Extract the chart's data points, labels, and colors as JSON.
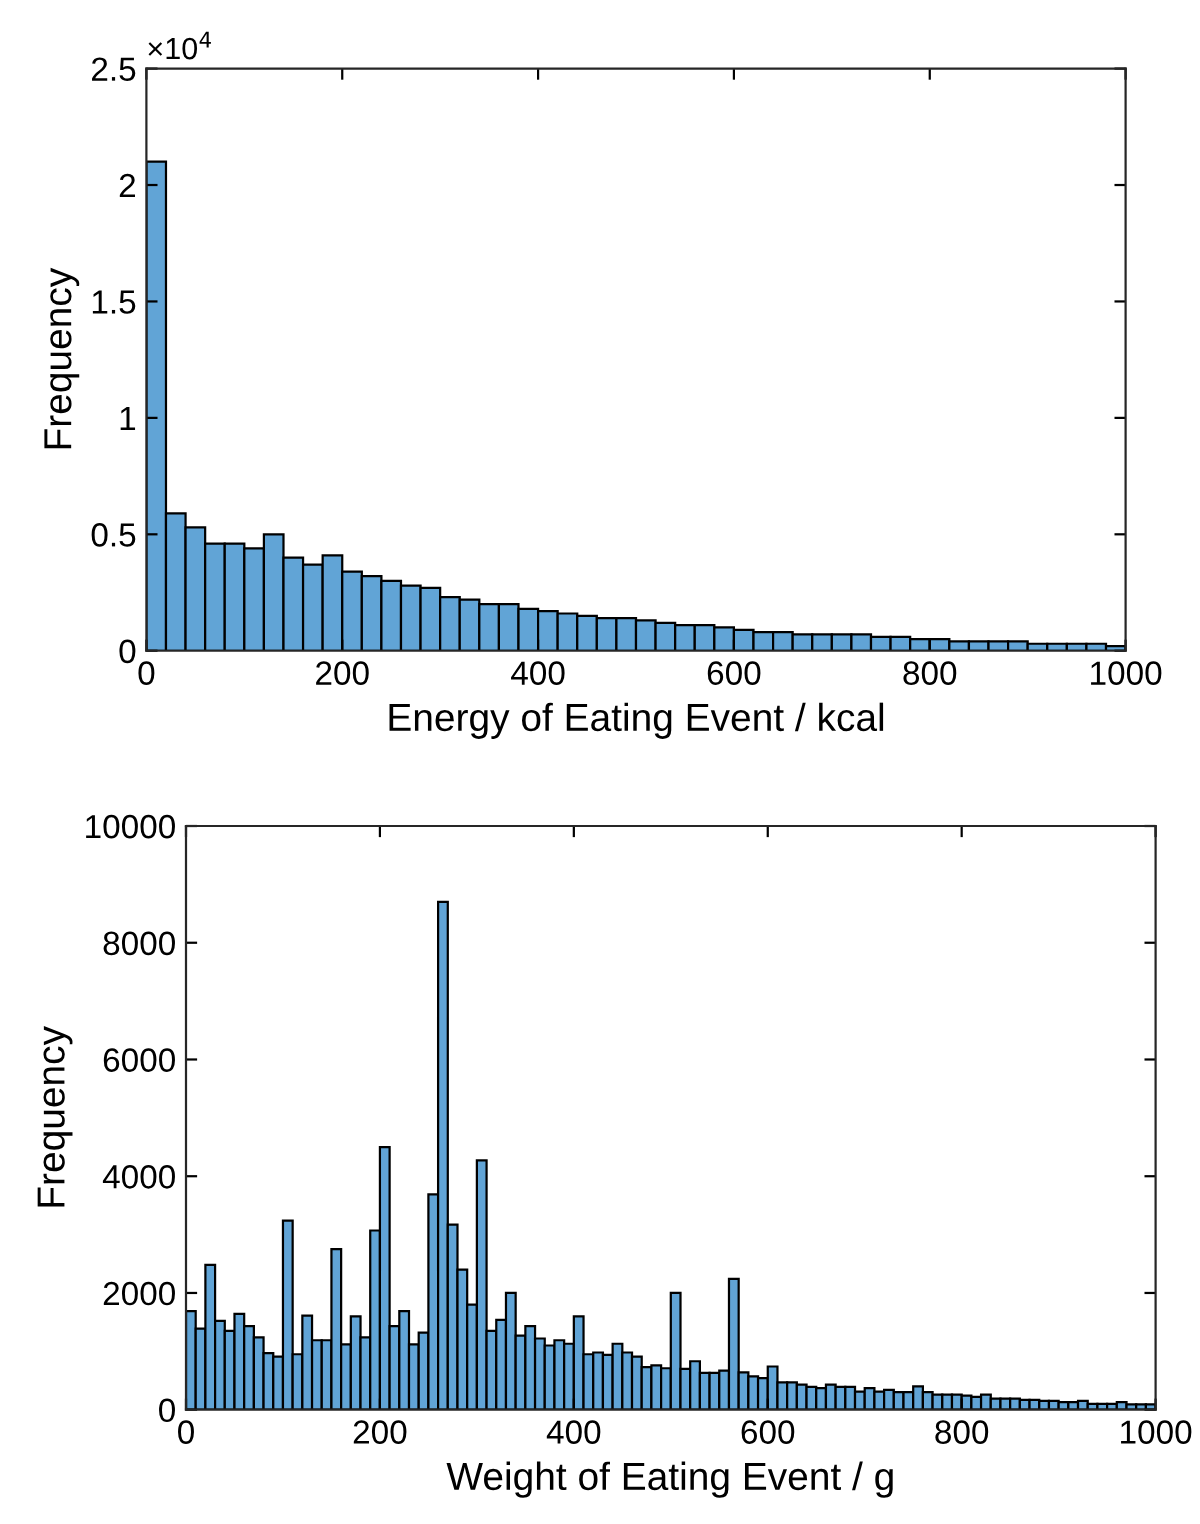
{
  "chart_data": [
    {
      "type": "histogram",
      "xlabel": "Energy of Eating Event / kcal",
      "ylabel": "Frequency",
      "color": "#61a4d6",
      "bins": [
        0,
        20,
        40,
        60,
        80,
        100,
        120,
        140,
        160,
        180,
        200,
        220,
        240,
        260,
        280,
        300,
        320,
        340,
        360,
        380,
        400,
        420,
        440,
        460,
        480,
        500,
        520,
        540,
        560,
        580,
        600,
        620,
        640,
        660,
        680,
        700,
        720,
        740,
        760,
        780,
        800,
        820,
        840,
        860,
        880,
        900,
        920,
        940,
        960,
        980,
        1000
      ],
      "values": [
        2.1,
        0.59,
        0.53,
        0.46,
        0.46,
        0.44,
        0.5,
        0.4,
        0.37,
        0.41,
        0.34,
        0.32,
        0.3,
        0.28,
        0.27,
        0.23,
        0.22,
        0.2,
        0.2,
        0.18,
        0.17,
        0.16,
        0.15,
        0.14,
        0.14,
        0.13,
        0.12,
        0.11,
        0.11,
        0.1,
        0.09,
        0.08,
        0.08,
        0.07,
        0.07,
        0.07,
        0.07,
        0.06,
        0.06,
        0.05,
        0.05,
        0.04,
        0.04,
        0.04,
        0.04,
        0.03,
        0.03,
        0.03,
        0.03,
        0.02
      ],
      "xlim": [
        0,
        1000
      ],
      "xticks": [
        0,
        200,
        400,
        600,
        800,
        1000
      ],
      "ylim": [
        0,
        2.5
      ],
      "yticks": [
        0,
        0.5,
        1,
        1.5,
        2,
        2.5
      ],
      "annotations": [
        "×10$^{4}$"
      ],
      "grid": false,
      "legend": false
    },
    {
      "type": "histogram",
      "xlabel": "Weight of Eating Event / g",
      "ylabel": "Frequency",
      "color": "#61a4d6",
      "bins": [
        0,
        10,
        20,
        30,
        40,
        50,
        60,
        70,
        80,
        90,
        100,
        110,
        120,
        130,
        140,
        150,
        160,
        170,
        180,
        190,
        200,
        210,
        220,
        230,
        240,
        250,
        260,
        270,
        280,
        290,
        300,
        310,
        320,
        330,
        340,
        350,
        360,
        370,
        380,
        390,
        400,
        410,
        420,
        430,
        440,
        450,
        460,
        470,
        480,
        490,
        500,
        510,
        520,
        530,
        540,
        550,
        560,
        570,
        580,
        590,
        600,
        610,
        620,
        630,
        640,
        650,
        660,
        670,
        680,
        690,
        700,
        710,
        720,
        730,
        740,
        750,
        760,
        770,
        780,
        790,
        800,
        810,
        820,
        830,
        840,
        850,
        860,
        870,
        880,
        890,
        900,
        910,
        920,
        930,
        940,
        950,
        960,
        970,
        980,
        990,
        1000
      ],
      "values": [
        1690,
        1390,
        2480,
        1520,
        1350,
        1640,
        1430,
        1240,
        970,
        910,
        3240,
        950,
        1610,
        1190,
        1190,
        2750,
        1120,
        1600,
        1240,
        3070,
        4500,
        1430,
        1690,
        1120,
        1320,
        3690,
        8700,
        3170,
        2400,
        1800,
        4270,
        1350,
        1540,
        2000,
        1270,
        1430,
        1220,
        1100,
        1190,
        1130,
        1600,
        950,
        980,
        940,
        1130,
        980,
        910,
        730,
        760,
        710,
        2000,
        700,
        830,
        630,
        630,
        670,
        2240,
        640,
        570,
        540,
        740,
        470,
        470,
        430,
        390,
        370,
        430,
        390,
        390,
        310,
        370,
        310,
        340,
        300,
        300,
        400,
        300,
        260,
        260,
        260,
        240,
        220,
        260,
        190,
        190,
        190,
        170,
        170,
        150,
        150,
        130,
        130,
        150,
        100,
        100,
        100,
        130,
        90,
        90,
        90
      ],
      "xlim": [
        0,
        1000
      ],
      "xticks": [
        0,
        200,
        400,
        600,
        800,
        1000
      ],
      "ylim": [
        0,
        10000
      ],
      "yticks": [
        0,
        2000,
        4000,
        6000,
        8000,
        10000
      ],
      "grid": false,
      "legend": false
    }
  ]
}
